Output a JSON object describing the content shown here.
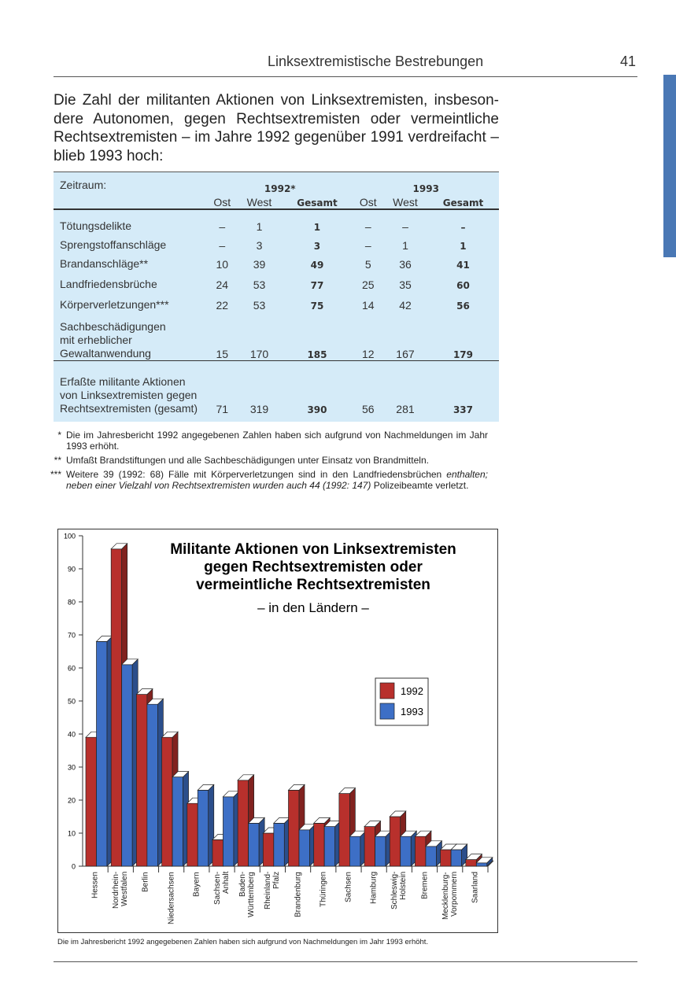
{
  "header": {
    "title": "Linksextremistische Bestrebungen",
    "page": "41"
  },
  "intro": [
    "Die Zahl der militanten Aktionen von Linksextremisten, insbeson-",
    "dere Autonomen, gegen Rechtsextremisten oder vermeintliche",
    "Rechtsextremisten – im Jahre 1992 gegenüber 1991 verdreifacht –",
    "blieb 1993 hoch:"
  ],
  "table": {
    "label_header": "Zeitraum:",
    "groups": [
      "1992*",
      "1993"
    ],
    "columns": [
      "Ost",
      "West",
      "Gesamt",
      "Ost",
      "West",
      "Gesamt"
    ],
    "rows": [
      [
        "Tötungsdelikte",
        "–",
        "1",
        "1",
        "–",
        "–",
        "–"
      ],
      [
        "Sprengstoffanschläge",
        "–",
        "3",
        "3",
        "–",
        "1",
        "1"
      ],
      [
        "Brandanschläge**",
        "10",
        "39",
        "49",
        "5",
        "36",
        "41"
      ],
      [
        "Landfriedensbrüche",
        "24",
        "53",
        "77",
        "25",
        "35",
        "60"
      ],
      [
        "Körperverletzungen***",
        "22",
        "53",
        "75",
        "14",
        "42",
        "56"
      ],
      [
        "Sachbeschädigungen\nmit erheblicher\nGewaltanwendung",
        "15",
        "170",
        "185",
        "12",
        "167",
        "179"
      ],
      [
        "Erfaßte militante Aktionen\nvon Linksextremisten gegen\nRechtsextremisten (gesamt)",
        "71",
        "319",
        "390",
        "56",
        "281",
        "337"
      ]
    ]
  },
  "footnotes": [
    {
      "marker": "*",
      "parts": [
        "Die im Jahresbericht 1992 angegebenen Zahlen haben sich aufgrund von Nachmeldungen im Jahr 1993 erhöht."
      ]
    },
    {
      "marker": "**",
      "parts": [
        "Umfaßt Brandstiftungen und alle Sachbeschädigungen unter Einsatz von Brandmitteln."
      ]
    },
    {
      "marker": "***",
      "parts": [
        "Weitere 39 (1992: 68) Fälle mit Körperverletzungen sind in den Landfriedensbrüchen ",
        "enthalten; neben einer Vielzahl von Rechtsextremisten wurden auch 44 (1992: 147)",
        " Polizeibeamte verletzt."
      ]
    }
  ],
  "chart_data": {
    "type": "bar3d",
    "title": [
      "Militante Aktionen von Linksextremisten",
      "gegen Rechtsextremisten oder",
      "vermeintliche Rechtsextremisten"
    ],
    "subtitle": "– in den Ländern –",
    "categories": [
      "Hessen",
      "Nordrhein-\nWestfalen",
      "Berlin",
      "Niedersachsen",
      "Bayern",
      "Sachsen-\nAnhalt",
      "Baden-\nWürttemberg",
      "Rheinland-\nPfalz",
      "Brandenburg",
      "Thüringen",
      "Sachsen",
      "Hamburg",
      "Schleswig-\nHolstein",
      "Bremen",
      "Mecklenburg-\nVorpommern",
      "Saarland"
    ],
    "series": [
      {
        "name": "1992",
        "color": "#b8302c",
        "values": [
          39,
          96,
          52,
          39,
          19,
          8,
          26,
          10,
          23,
          13,
          22,
          12,
          15,
          9,
          5,
          2
        ]
      },
      {
        "name": "1993",
        "color": "#3d6fc6",
        "values": [
          68,
          61,
          49,
          27,
          23,
          21,
          13,
          13,
          11,
          12,
          9,
          9,
          9,
          6,
          5,
          1
        ]
      }
    ],
    "ylim": [
      0,
      100
    ],
    "yticks": [
      0,
      10,
      20,
      30,
      40,
      50,
      60,
      70,
      80,
      90,
      100
    ]
  },
  "caption": "Die im Jahresbericht 1992 angegebenen Zahlen haben sich aufgrund von Nachmeldungen im Jahr 1993 erhöht."
}
